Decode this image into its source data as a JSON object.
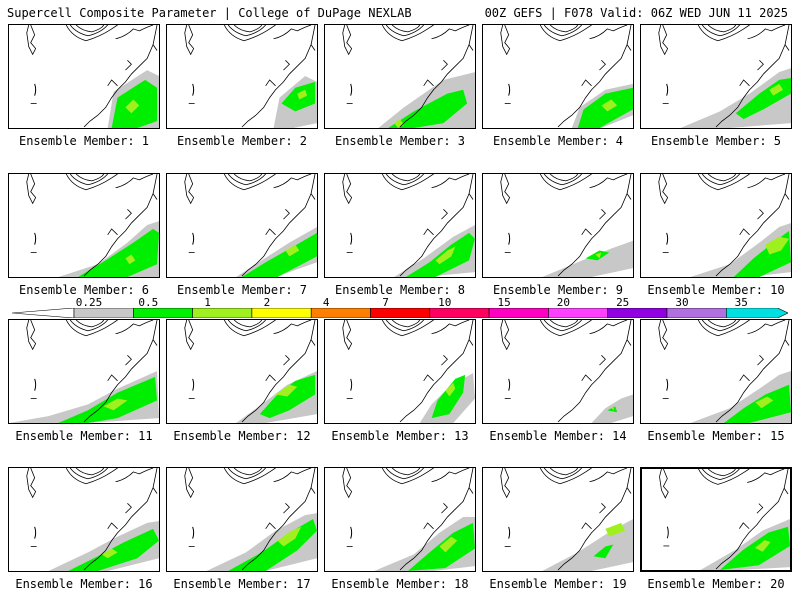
{
  "header": {
    "title_left": "Supercell Composite Parameter | College of DuPage NEXLAB",
    "title_right": "00Z GEFS | F078 Valid: 06Z WED JUN 11 2025"
  },
  "colors": {
    "gray": "#c8c8c8",
    "green": "#00ee00",
    "light_green": "#a0f020",
    "yellow": "#ffff00",
    "orange": "#ff8000",
    "red": "#ff0000",
    "crimson": "#ff0060",
    "magenta": "#ff00c0",
    "pink": "#ff40ff",
    "purple": "#9000e0",
    "lavender": "#b070e0",
    "cyan": "#00e0e0"
  },
  "colorbar": {
    "labels": [
      "0.25",
      "0.5",
      "1",
      "2",
      "4",
      "7",
      "10",
      "15",
      "20",
      "25",
      "30",
      "35"
    ],
    "bins": [
      {
        "color": "#c8c8c8"
      },
      {
        "color": "#00ee00"
      },
      {
        "color": "#a0f020"
      },
      {
        "color": "#ffff00"
      },
      {
        "color": "#ff8000"
      },
      {
        "color": "#ff0000"
      },
      {
        "color": "#ff0060"
      },
      {
        "color": "#ff00c0"
      },
      {
        "color": "#ff40ff"
      },
      {
        "color": "#9000e0"
      },
      {
        "color": "#b070e0"
      },
      {
        "color": "#00e0e0"
      }
    ]
  },
  "panels": [
    {
      "label": "Ensemble Member: 1"
    },
    {
      "label": "Ensemble Member: 2"
    },
    {
      "label": "Ensemble Member: 3"
    },
    {
      "label": "Ensemble Member: 4"
    },
    {
      "label": "Ensemble Member: 5"
    },
    {
      "label": "Ensemble Member: 6"
    },
    {
      "label": "Ensemble Member: 7"
    },
    {
      "label": "Ensemble Member: 8"
    },
    {
      "label": "Ensemble Member: 9"
    },
    {
      "label": "Ensemble Member: 10"
    },
    {
      "label": "Ensemble Member: 11"
    },
    {
      "label": "Ensemble Member: 12"
    },
    {
      "label": "Ensemble Member: 13"
    },
    {
      "label": "Ensemble Member: 14"
    },
    {
      "label": "Ensemble Member: 15"
    },
    {
      "label": "Ensemble Member: 16"
    },
    {
      "label": "Ensemble Member: 17"
    },
    {
      "label": "Ensemble Member: 18"
    },
    {
      "label": "Ensemble Member: 19"
    },
    {
      "label": "Ensemble Member: 20",
      "selected": true
    }
  ]
}
